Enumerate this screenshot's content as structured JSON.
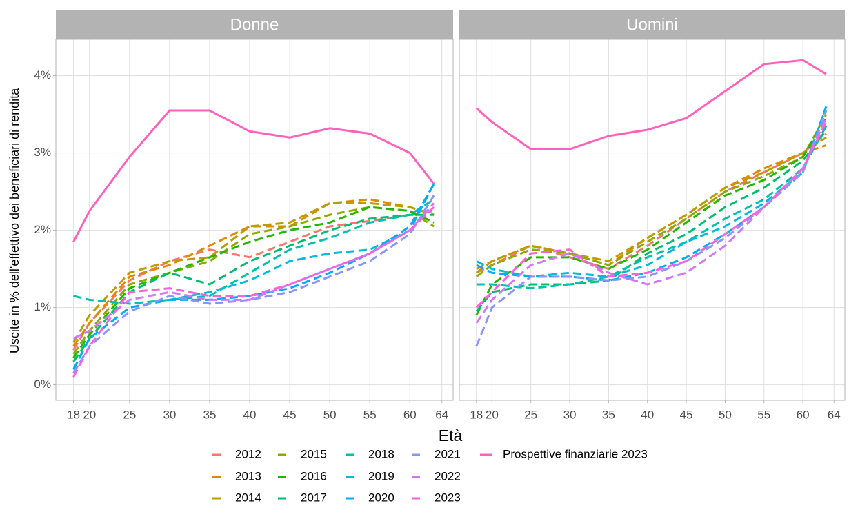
{
  "chart_data": {
    "type": "line",
    "x_label": "Età",
    "y_label": "Uscite in % dell'effettivo dei beneficiari di rendita",
    "x": [
      18,
      20,
      25,
      30,
      35,
      40,
      45,
      50,
      55,
      60,
      63
    ],
    "xlim": [
      15.8,
      65.4
    ],
    "ylim": [
      -0.2,
      4.47
    ],
    "xticks": [
      18,
      20,
      25,
      30,
      35,
      40,
      45,
      50,
      55,
      60,
      64
    ],
    "yticks": [
      {
        "value": 0,
        "label": "0%"
      },
      {
        "value": 1,
        "label": "1%"
      },
      {
        "value": 2,
        "label": "2%"
      },
      {
        "value": 3,
        "label": "3%"
      },
      {
        "value": 4,
        "label": "4%"
      }
    ],
    "grid": true,
    "legend_position": "bottom",
    "series": [
      {
        "name": "2012",
        "color": "#F8766D",
        "style": "dashed"
      },
      {
        "name": "2013",
        "color": "#E18A00",
        "style": "dashed"
      },
      {
        "name": "2014",
        "color": "#BE9C00",
        "style": "dashed"
      },
      {
        "name": "2015",
        "color": "#8CAB00",
        "style": "dashed"
      },
      {
        "name": "2016",
        "color": "#24B700",
        "style": "dashed"
      },
      {
        "name": "2017",
        "color": "#00BE70",
        "style": "dashed"
      },
      {
        "name": "2018",
        "color": "#00C1AB",
        "style": "dashed"
      },
      {
        "name": "2019",
        "color": "#00BBDA",
        "style": "dashed"
      },
      {
        "name": "2020",
        "color": "#00ACFC",
        "style": "dashed"
      },
      {
        "name": "2021",
        "color": "#8B93FF",
        "style": "dashed"
      },
      {
        "name": "2022",
        "color": "#D575FE",
        "style": "dashed"
      },
      {
        "name": "2023",
        "color": "#F962DD",
        "style": "dashed"
      },
      {
        "name": "Prospettive finanziarie 2023",
        "color": "#FF62BC",
        "style": "solid"
      }
    ],
    "panels": [
      {
        "title": "Donne",
        "values": [
          [
            0.45,
            0.8,
            1.35,
            1.6,
            1.75,
            1.65,
            1.85,
            2.05,
            2.12,
            2.2,
            2.25
          ],
          [
            0.5,
            0.8,
            1.4,
            1.55,
            1.8,
            2.05,
            2.05,
            2.35,
            2.4,
            2.3,
            2.2
          ],
          [
            0.55,
            0.9,
            1.45,
            1.6,
            1.65,
            2.05,
            2.1,
            2.35,
            2.35,
            2.3,
            2.2
          ],
          [
            0.4,
            0.7,
            1.3,
            1.45,
            1.6,
            1.95,
            2.05,
            2.2,
            2.3,
            2.25,
            2.05
          ],
          [
            0.35,
            0.65,
            1.25,
            1.45,
            1.65,
            1.85,
            2.0,
            2.1,
            2.3,
            2.25,
            2.1
          ],
          [
            0.3,
            0.6,
            1.2,
            1.45,
            1.3,
            1.6,
            1.8,
            2.0,
            2.15,
            2.2,
            2.2
          ],
          [
            1.15,
            1.1,
            1.05,
            1.1,
            1.15,
            1.45,
            1.75,
            1.9,
            2.1,
            2.2,
            2.4
          ],
          [
            0.2,
            0.6,
            1.0,
            1.1,
            1.2,
            1.35,
            1.6,
            1.7,
            1.75,
            2.0,
            2.6
          ],
          [
            0.2,
            0.6,
            1.0,
            1.1,
            1.1,
            1.15,
            1.25,
            1.45,
            1.7,
            2.05,
            2.6
          ],
          [
            0.15,
            0.5,
            0.95,
            1.15,
            1.05,
            1.1,
            1.2,
            1.4,
            1.6,
            1.95,
            2.45
          ],
          [
            0.6,
            0.7,
            1.1,
            1.2,
            1.1,
            1.1,
            1.3,
            1.5,
            1.7,
            2.0,
            2.35
          ],
          [
            0.1,
            0.5,
            1.2,
            1.25,
            1.15,
            1.15,
            1.3,
            1.5,
            1.7,
            2.0,
            2.3
          ],
          [
            1.85,
            2.25,
            2.95,
            3.55,
            3.55,
            3.28,
            3.2,
            3.32,
            3.25,
            3.0,
            2.6
          ]
        ]
      },
      {
        "title": "Uomini",
        "values": [
          [
            1.45,
            1.55,
            1.8,
            1.65,
            1.5,
            1.8,
            2.15,
            2.5,
            2.75,
            3.0,
            3.25
          ],
          [
            1.5,
            1.6,
            1.8,
            1.7,
            1.55,
            1.9,
            2.2,
            2.55,
            2.8,
            3.0,
            3.1
          ],
          [
            1.45,
            1.6,
            1.8,
            1.7,
            1.6,
            1.9,
            2.2,
            2.55,
            2.75,
            3.0,
            3.2
          ],
          [
            1.4,
            1.55,
            1.75,
            1.7,
            1.55,
            1.85,
            2.15,
            2.5,
            2.7,
            2.95,
            3.5
          ],
          [
            0.9,
            1.3,
            1.65,
            1.65,
            1.5,
            1.75,
            2.1,
            2.45,
            2.65,
            2.95,
            3.45
          ],
          [
            0.95,
            1.2,
            1.3,
            1.3,
            1.35,
            1.7,
            1.95,
            2.3,
            2.55,
            2.9,
            3.3
          ],
          [
            1.3,
            1.3,
            1.25,
            1.3,
            1.4,
            1.65,
            1.85,
            2.15,
            2.4,
            2.8,
            3.35
          ],
          [
            1.6,
            1.5,
            1.4,
            1.45,
            1.4,
            1.55,
            1.85,
            2.05,
            2.35,
            2.75,
            3.6
          ],
          [
            1.55,
            1.45,
            1.4,
            1.4,
            1.35,
            1.45,
            1.65,
            1.95,
            2.3,
            2.75,
            3.6
          ],
          [
            0.5,
            1.0,
            1.4,
            1.4,
            1.35,
            1.4,
            1.6,
            1.9,
            2.3,
            2.75,
            3.55
          ],
          [
            0.8,
            1.1,
            1.55,
            1.7,
            1.45,
            1.3,
            1.45,
            1.8,
            2.3,
            2.8,
            3.45
          ],
          [
            1.0,
            1.2,
            1.7,
            1.75,
            1.4,
            1.45,
            1.6,
            1.95,
            2.3,
            2.8,
            3.4
          ],
          [
            3.58,
            3.4,
            3.05,
            3.05,
            3.22,
            3.3,
            3.45,
            3.8,
            4.15,
            4.2,
            4.02
          ]
        ]
      }
    ]
  }
}
